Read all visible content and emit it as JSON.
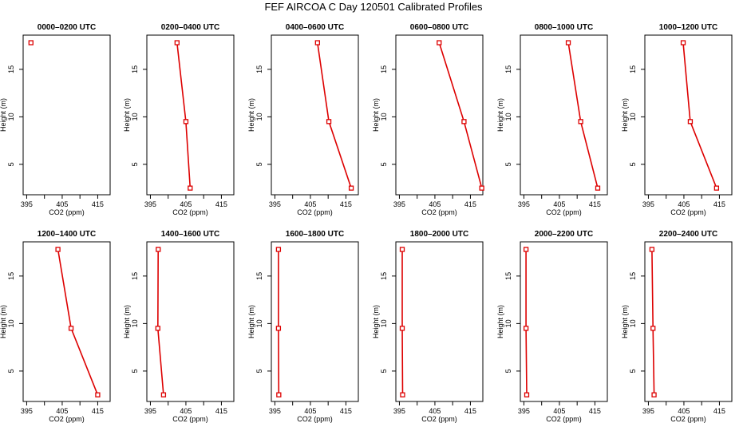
{
  "title": "FEF AIRCOA C  Day 120501  Calibrated Profiles",
  "colors": {
    "series": "#dd0000",
    "axis": "#000000",
    "background": "#ffffff"
  },
  "chart_data": [
    {
      "type": "line",
      "title": "0000–0200 UTC",
      "xlabel": "CO2 (ppm)",
      "ylabel": "Height (m)",
      "xlim": [
        394,
        418.5
      ],
      "ylim": [
        1.8,
        18.6
      ],
      "xticks": [
        395,
        400,
        405,
        410,
        415
      ],
      "xtick_labels": [
        "395",
        "",
        "405",
        "",
        "415"
      ],
      "yticks": [
        5,
        10,
        15
      ],
      "series": [
        {
          "x": [
            396.2
          ],
          "y": [
            17.8
          ]
        }
      ]
    },
    {
      "type": "line",
      "title": "0200–0400 UTC",
      "xlabel": "CO2 (ppm)",
      "ylabel": "Height (m)",
      "xlim": [
        394,
        418.5
      ],
      "ylim": [
        1.8,
        18.6
      ],
      "xticks": [
        395,
        400,
        405,
        410,
        415
      ],
      "xtick_labels": [
        "395",
        "",
        "405",
        "",
        "415"
      ],
      "yticks": [
        5,
        10,
        15
      ],
      "series": [
        {
          "x": [
            402.5,
            405.0,
            406.2
          ],
          "y": [
            17.8,
            9.5,
            2.5
          ]
        }
      ]
    },
    {
      "type": "line",
      "title": "0400–0600 UTC",
      "xlabel": "CO2 (ppm)",
      "ylabel": "Height (m)",
      "xlim": [
        394,
        418.5
      ],
      "ylim": [
        1.8,
        18.6
      ],
      "xticks": [
        395,
        400,
        405,
        410,
        415
      ],
      "xtick_labels": [
        "395",
        "",
        "405",
        "",
        "415"
      ],
      "yticks": [
        5,
        10,
        15
      ],
      "series": [
        {
          "x": [
            407.0,
            410.2,
            416.5
          ],
          "y": [
            17.8,
            9.5,
            2.5
          ]
        }
      ]
    },
    {
      "type": "line",
      "title": "0600–0800 UTC",
      "xlabel": "CO2 (ppm)",
      "ylabel": "Height (m)",
      "xlim": [
        394,
        418.5
      ],
      "ylim": [
        1.8,
        18.6
      ],
      "xticks": [
        395,
        400,
        405,
        410,
        415
      ],
      "xtick_labels": [
        "395",
        "",
        "405",
        "",
        "415"
      ],
      "yticks": [
        5,
        10,
        15
      ],
      "series": [
        {
          "x": [
            406.2,
            413.2,
            418.2
          ],
          "y": [
            17.8,
            9.5,
            2.5
          ]
        }
      ]
    },
    {
      "type": "line",
      "title": "0800–1000 UTC",
      "xlabel": "CO2 (ppm)",
      "ylabel": "Height (m)",
      "xlim": [
        394,
        418.5
      ],
      "ylim": [
        1.8,
        18.6
      ],
      "xticks": [
        395,
        400,
        405,
        410,
        415
      ],
      "xtick_labels": [
        "395",
        "",
        "405",
        "",
        "415"
      ],
      "yticks": [
        5,
        10,
        15
      ],
      "series": [
        {
          "x": [
            407.5,
            411.0,
            415.8
          ],
          "y": [
            17.8,
            9.5,
            2.5
          ]
        }
      ]
    },
    {
      "type": "line",
      "title": "1000–1200 UTC",
      "xlabel": "CO2 (ppm)",
      "ylabel": "Height (m)",
      "xlim": [
        394,
        418.5
      ],
      "ylim": [
        1.8,
        18.6
      ],
      "xticks": [
        395,
        400,
        405,
        410,
        415
      ],
      "xtick_labels": [
        "395",
        "",
        "405",
        "",
        "415"
      ],
      "yticks": [
        5,
        10,
        15
      ],
      "series": [
        {
          "x": [
            404.8,
            406.8,
            414.2
          ],
          "y": [
            17.8,
            9.5,
            2.5
          ]
        }
      ]
    },
    {
      "type": "line",
      "title": "1200–1400 UTC",
      "xlabel": "CO2 (ppm)",
      "ylabel": "Height (m)",
      "xlim": [
        394,
        418.5
      ],
      "ylim": [
        1.8,
        18.6
      ],
      "xticks": [
        395,
        400,
        405,
        410,
        415
      ],
      "xtick_labels": [
        "395",
        "",
        "405",
        "",
        "415"
      ],
      "yticks": [
        5,
        10,
        15
      ],
      "series": [
        {
          "x": [
            403.8,
            407.5,
            415.0
          ],
          "y": [
            17.8,
            9.5,
            2.5
          ]
        }
      ]
    },
    {
      "type": "line",
      "title": "1400–1600 UTC",
      "xlabel": "CO2 (ppm)",
      "ylabel": "Height (m)",
      "xlim": [
        394,
        418.5
      ],
      "ylim": [
        1.8,
        18.6
      ],
      "xticks": [
        395,
        400,
        405,
        410,
        415
      ],
      "xtick_labels": [
        "395",
        "",
        "405",
        "",
        "415"
      ],
      "yticks": [
        5,
        10,
        15
      ],
      "series": [
        {
          "x": [
            397.2,
            397.1,
            398.7
          ],
          "y": [
            17.8,
            9.5,
            2.5
          ]
        }
      ]
    },
    {
      "type": "line",
      "title": "1600–1800 UTC",
      "xlabel": "CO2 (ppm)",
      "ylabel": "Height (m)",
      "xlim": [
        394,
        418.5
      ],
      "ylim": [
        1.8,
        18.6
      ],
      "xticks": [
        395,
        400,
        405,
        410,
        415
      ],
      "xtick_labels": [
        "395",
        "",
        "405",
        "",
        "415"
      ],
      "yticks": [
        5,
        10,
        15
      ],
      "series": [
        {
          "x": [
            396.0,
            396.0,
            396.1
          ],
          "y": [
            17.8,
            9.5,
            2.5
          ]
        }
      ]
    },
    {
      "type": "line",
      "title": "1800–2000 UTC",
      "xlabel": "CO2 (ppm)",
      "ylabel": "Height (m)",
      "xlim": [
        394,
        418.5
      ],
      "ylim": [
        1.8,
        18.6
      ],
      "xticks": [
        395,
        400,
        405,
        410,
        415
      ],
      "xtick_labels": [
        "395",
        "",
        "405",
        "",
        "415"
      ],
      "yticks": [
        5,
        10,
        15
      ],
      "series": [
        {
          "x": [
            395.8,
            395.8,
            395.9
          ],
          "y": [
            17.8,
            9.5,
            2.5
          ]
        }
      ]
    },
    {
      "type": "line",
      "title": "2000–2200 UTC",
      "xlabel": "CO2 (ppm)",
      "ylabel": "Height (m)",
      "xlim": [
        394,
        418.5
      ],
      "ylim": [
        1.8,
        18.6
      ],
      "xticks": [
        395,
        400,
        405,
        410,
        415
      ],
      "xtick_labels": [
        "395",
        "",
        "405",
        "",
        "415"
      ],
      "yticks": [
        5,
        10,
        15
      ],
      "series": [
        {
          "x": [
            395.6,
            395.6,
            395.8
          ],
          "y": [
            17.8,
            9.5,
            2.5
          ]
        }
      ]
    },
    {
      "type": "line",
      "title": "2200–2400 UTC",
      "xlabel": "CO2 (ppm)",
      "ylabel": "Height (m)",
      "xlim": [
        394,
        418.5
      ],
      "ylim": [
        1.8,
        18.6
      ],
      "xticks": [
        395,
        400,
        405,
        410,
        415
      ],
      "xtick_labels": [
        "395",
        "",
        "405",
        "",
        "415"
      ],
      "yticks": [
        5,
        10,
        15
      ],
      "series": [
        {
          "x": [
            396.0,
            396.3,
            396.6
          ],
          "y": [
            17.8,
            9.5,
            2.5
          ]
        }
      ]
    }
  ]
}
